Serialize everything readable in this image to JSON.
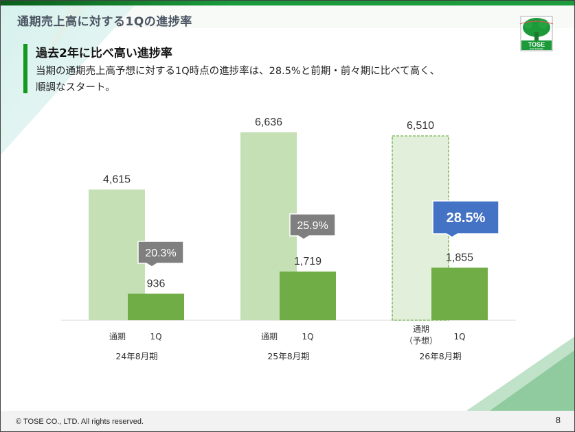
{
  "slide": {
    "title": "通期売上高に対する1Qの進捗率",
    "headline": "過去2年に比べ高い進捗率",
    "body_line1": "当期の通期売上高予想に対する1Q時点の進捗率は、28.5%と前期・前々期に比べて高く、",
    "body_line2": "順調なスタート。",
    "logo_text": "TOSE SOFTWARE",
    "footer": "© TOSE CO., LTD. All rights reserved.",
    "page_number": "8"
  },
  "colors": {
    "annual": "#c5e0b4",
    "annual_forecast": "#e2efda",
    "annual_forecast_border": "#70ad47",
    "q1": "#70ad47",
    "callout_gray": "#7f7f7f",
    "callout_blue": "#4472c4",
    "accent": "#119a1f"
  },
  "chart_data": {
    "type": "bar",
    "title": "",
    "xlabel": "",
    "ylabel": "",
    "ylim": [
      0,
      7000
    ],
    "grid": false,
    "groups": [
      {
        "period": "24年8月期",
        "annual_label": "通期",
        "annual_label2": "",
        "q1_label": "1Q",
        "annual": 4615,
        "annual_text": "4,615",
        "q1": 936,
        "q1_text": "936",
        "rate": "20.3%",
        "forecast": false
      },
      {
        "period": "25年8月期",
        "annual_label": "通期",
        "annual_label2": "",
        "q1_label": "1Q",
        "annual": 6636,
        "annual_text": "6,636",
        "q1": 1719,
        "q1_text": "1,719",
        "rate": "25.9%",
        "forecast": false
      },
      {
        "period": "26年8月期",
        "annual_label": "通期",
        "annual_label2": "（予想）",
        "q1_label": "1Q",
        "annual": 6510,
        "annual_text": "6,510",
        "q1": 1855,
        "q1_text": "1,855",
        "rate": "28.5%",
        "forecast": true
      }
    ]
  }
}
